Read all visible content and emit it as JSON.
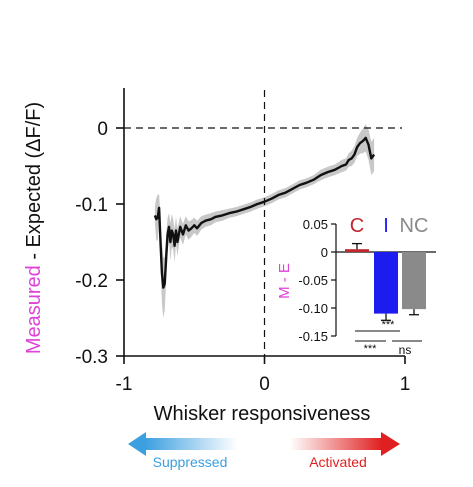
{
  "chart_data": [
    {
      "type": "line",
      "ylabel": {
        "highlight": "Measured",
        "rest": " - Expected (ΔF/F)",
        "highlight_color": "#e040d8"
      },
      "xlabel": "Whisker responsiveness",
      "xlim": [
        -1,
        1
      ],
      "ylim": [
        -0.3,
        0.05
      ],
      "x_ticks": [
        {
          "value": -1,
          "label": "-1"
        },
        {
          "value": 0,
          "label": "0"
        },
        {
          "value": 1,
          "label": "1"
        }
      ],
      "y_ticks": [
        {
          "value": 0,
          "label": "0"
        },
        {
          "value": -0.1,
          "label": "-0.1"
        },
        {
          "value": -0.2,
          "label": "-0.2"
        },
        {
          "value": -0.3,
          "label": "-0.3"
        }
      ],
      "reference_lines": {
        "y": 0,
        "x": 0,
        "style": "dashed"
      },
      "series": [
        {
          "line_color": "#111111",
          "band_color": "#c8c8c8",
          "x": [
            -0.78,
            -0.77,
            -0.76,
            -0.75,
            -0.74,
            -0.73,
            -0.72,
            -0.71,
            -0.7,
            -0.69,
            -0.68,
            -0.67,
            -0.66,
            -0.65,
            -0.64,
            -0.63,
            -0.62,
            -0.6,
            -0.58,
            -0.56,
            -0.54,
            -0.52,
            -0.5,
            -0.48,
            -0.45,
            -0.42,
            -0.38,
            -0.35,
            -0.3,
            -0.25,
            -0.2,
            -0.15,
            -0.1,
            -0.05,
            0.0,
            0.05,
            0.1,
            0.15,
            0.2,
            0.25,
            0.3,
            0.35,
            0.4,
            0.45,
            0.5,
            0.55,
            0.58,
            0.6,
            0.62,
            0.64,
            0.66,
            0.68,
            0.7,
            0.72,
            0.74,
            0.76,
            0.78
          ],
          "y": [
            -0.115,
            -0.12,
            -0.118,
            -0.105,
            -0.15,
            -0.19,
            -0.21,
            -0.205,
            -0.17,
            -0.14,
            -0.13,
            -0.15,
            -0.135,
            -0.14,
            -0.155,
            -0.135,
            -0.15,
            -0.13,
            -0.14,
            -0.128,
            -0.135,
            -0.132,
            -0.128,
            -0.132,
            -0.125,
            -0.122,
            -0.12,
            -0.117,
            -0.115,
            -0.112,
            -0.11,
            -0.107,
            -0.104,
            -0.1,
            -0.097,
            -0.093,
            -0.088,
            -0.085,
            -0.08,
            -0.075,
            -0.072,
            -0.068,
            -0.062,
            -0.058,
            -0.055,
            -0.05,
            -0.048,
            -0.042,
            -0.04,
            -0.035,
            -0.025,
            -0.02,
            -0.017,
            -0.013,
            -0.022,
            -0.04,
            -0.035
          ],
          "error": [
            0.012,
            0.028,
            0.03,
            0.018,
            0.03,
            0.04,
            0.04,
            0.035,
            0.03,
            0.022,
            0.018,
            0.025,
            0.022,
            0.02,
            0.022,
            0.018,
            0.018,
            0.014,
            0.014,
            0.012,
            0.012,
            0.011,
            0.01,
            0.01,
            0.009,
            0.008,
            0.008,
            0.007,
            0.007,
            0.006,
            0.006,
            0.006,
            0.006,
            0.006,
            0.006,
            0.006,
            0.006,
            0.006,
            0.006,
            0.006,
            0.006,
            0.006,
            0.007,
            0.007,
            0.007,
            0.008,
            0.008,
            0.009,
            0.01,
            0.011,
            0.012,
            0.014,
            0.016,
            0.018,
            0.02,
            0.022,
            0.022
          ]
        }
      ]
    },
    {
      "type": "bar",
      "ylabel": {
        "text": "M - E",
        "color": "#e040d8"
      },
      "ylim": [
        -0.15,
        0.05
      ],
      "y_ticks": [
        {
          "value": 0.05,
          "label": "0.05"
        },
        {
          "value": 0,
          "label": "0"
        },
        {
          "value": -0.05,
          "label": "-0.05"
        },
        {
          "value": -0.1,
          "label": "-0.10"
        },
        {
          "value": -0.15,
          "label": "-0.15"
        }
      ],
      "categories": [
        {
          "label": "C",
          "value": 0.005,
          "error": 0.01,
          "color": "#c0282e"
        },
        {
          "label": "I",
          "value": -0.11,
          "error": 0.012,
          "color": "#1c1cf0"
        },
        {
          "label": "NC",
          "value": -0.102,
          "error": 0.01,
          "color": "#8a8a8a"
        }
      ],
      "significance": [
        {
          "text": "***",
          "from": 0,
          "to": 1
        },
        {
          "text": "***",
          "from": 0,
          "to": 2
        },
        {
          "text": "ns",
          "from": 1,
          "to": 2
        }
      ]
    }
  ],
  "legend_arrows": {
    "suppressed": {
      "label": "Suppressed",
      "color": "#3b9fe0"
    },
    "activated": {
      "label": "Activated",
      "color": "#e02020"
    }
  }
}
